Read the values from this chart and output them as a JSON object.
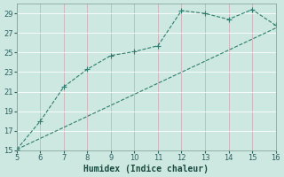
{
  "xlabel": "Humidex (Indice chaleur)",
  "bg_color": "#cce8e0",
  "grid_color": "#b0c8c0",
  "line_color": "#2e7d6e",
  "xlim": [
    5,
    16
  ],
  "ylim": [
    15,
    30
  ],
  "xticks": [
    5,
    6,
    7,
    8,
    9,
    10,
    11,
    12,
    13,
    14,
    15,
    16
  ],
  "yticks": [
    15,
    17,
    19,
    21,
    23,
    25,
    27,
    29
  ],
  "series1_x": [
    5,
    6,
    7,
    8,
    9,
    10,
    11,
    12,
    13,
    14,
    15,
    16
  ],
  "series1_y": [
    15.1,
    18.0,
    21.5,
    23.3,
    24.7,
    25.1,
    25.7,
    29.3,
    29.0,
    28.4,
    29.4,
    27.8
  ],
  "series2_x": [
    5,
    16
  ],
  "series2_y": [
    15.1,
    27.5
  ],
  "tick_fontsize": 6,
  "xlabel_fontsize": 7,
  "marker_size": 2.5,
  "line_width": 0.8
}
